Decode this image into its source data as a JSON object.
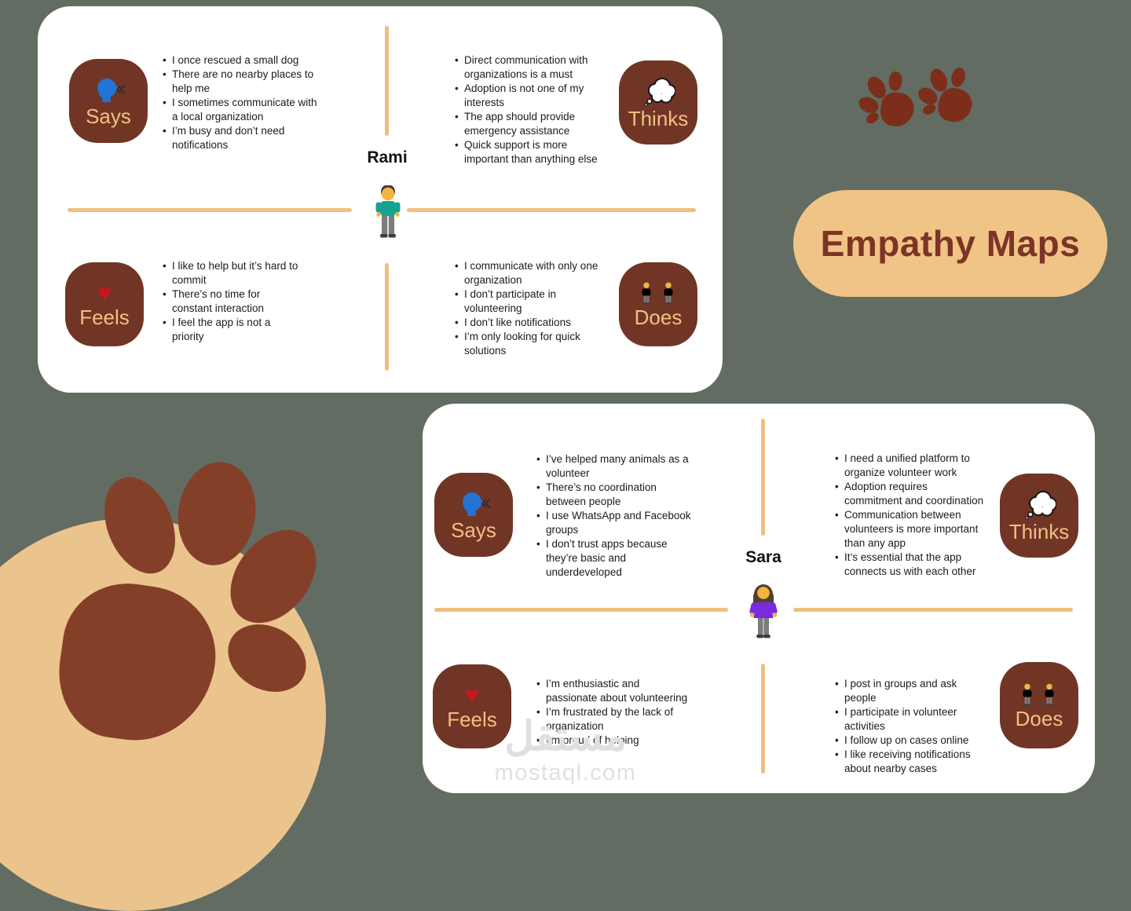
{
  "title": {
    "label": "Empathy Maps"
  },
  "watermark": {
    "logo": "مستقل",
    "domain": "mostaql.com"
  },
  "icons": {
    "heart_glyph": "♥",
    "says_icon": "speaking-head-icon",
    "thinks_icon": "thought-bubble-icon",
    "feels_icon": "heart-icon",
    "does_icon": "two-people-icon",
    "decorations": [
      "paw-print-icon",
      "paw-print-icon",
      "big-paw-print-icon"
    ]
  },
  "colors": {
    "background": "#626C62",
    "card": "#FFFFFF",
    "badge_brown": "#713525",
    "badge_label_tan": "#EFC183",
    "divider_tan": "#EFBF80",
    "title_pill": "#F0C487",
    "title_text": "#7D3426",
    "paw_small": "#7C2E1A",
    "paw_big": "#843F29",
    "circle_tan": "#EBC48D",
    "heart_red": "#C8161E",
    "says_head_blue": "#2273D4"
  },
  "cards": [
    {
      "name": "Rami",
      "persona_icon": "standing-man-icon",
      "quadrants": [
        {
          "label": "Says",
          "icon": "speaking-head-icon",
          "items": [
            "I once rescued a small dog",
            "There are no nearby places to help me",
            "I sometimes communicate with a local organization",
            "I’m busy and don’t need notifications"
          ]
        },
        {
          "label": "Thinks",
          "icon": "thought-bubble-icon",
          "items": [
            "Direct communication with organizations is a must",
            "Adoption is not one of my interests",
            "The app should provide emergency assistance",
            "Quick support is more important than anything else"
          ]
        },
        {
          "label": "Feels",
          "icon": "heart-icon",
          "items": [
            "I like to help but it’s hard to commit",
            "There’s no time for constant interaction",
            "I feel the app is not a priority"
          ]
        },
        {
          "label": "Does",
          "icon": "two-people-icon",
          "items": [
            "I communicate with only one organization",
            "I don’t participate in volunteering",
            "I don’t like notifications",
            "I’m only looking for quick solutions"
          ]
        }
      ]
    },
    {
      "name": "Sara",
      "persona_icon": "standing-woman-icon",
      "quadrants": [
        {
          "label": "Says",
          "icon": "speaking-head-icon",
          "items": [
            "I’ve helped many animals as a volunteer",
            "There’s no coordination between people",
            "I use WhatsApp and Facebook groups",
            "I don’t trust apps because they’re basic and underdeveloped"
          ]
        },
        {
          "label": "Thinks",
          "icon": "thought-bubble-icon",
          "items": [
            "I need a unified platform to organize volunteer work",
            "Adoption requires commitment and coordination",
            "Communication between volunteers is more important than any app",
            "It’s essential that the app connects us with each other"
          ]
        },
        {
          "label": "Feels",
          "icon": "heart-icon",
          "items": [
            "I’m enthusiastic and passionate about volunteering",
            "I’m frustrated by the lack of organization",
            "I’m proud of helping"
          ]
        },
        {
          "label": "Does",
          "icon": "two-people-icon",
          "items": [
            "I post in groups and ask people",
            "I participate in volunteer activities",
            "I follow up on cases online",
            "I like receiving notifications about nearby cases"
          ]
        }
      ]
    }
  ]
}
